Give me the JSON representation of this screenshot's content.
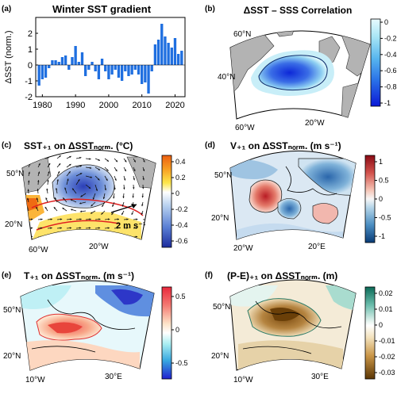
{
  "panels": {
    "a": {
      "tag": "(a)",
      "title": "Winter SST gradient",
      "ylabel": "ΔSST (norm.)",
      "yticks": [
        "-2",
        "-1",
        "0",
        "1",
        "2"
      ],
      "xticks": [
        "1980",
        "1990",
        "2000",
        "2010",
        "2020"
      ]
    },
    "b": {
      "tag": "(b)",
      "title": "ΔSST – SSS Correlation",
      "colorbar": [
        "0",
        "-0.2",
        "-0.4",
        "-0.6",
        "-0.8",
        "-1"
      ],
      "lat": [
        "60°N",
        "40°N"
      ],
      "lon": [
        "60°W",
        "20°W"
      ]
    },
    "c": {
      "tag": "(c)",
      "title": "SST₊₁ on ΔSSTₙₒᵣₘ. (°C)",
      "colorbar": [
        "0.4",
        "0.2",
        "0",
        "-0.2",
        "-0.4",
        "-0.6"
      ],
      "lat": [
        "50°N",
        "20°N"
      ],
      "lon": [
        "60°W",
        "20°W"
      ],
      "vector_label": "2 m s⁻¹"
    },
    "d": {
      "tag": "(d)",
      "title": "V₊₁ on ΔSSTₙₒᵣₘ. (m s⁻¹)",
      "colorbar": [
        "1",
        "0.5",
        "0",
        "-0.5",
        "-1"
      ],
      "lat": [
        "50°N",
        "20°N"
      ],
      "lon": [
        "20°W",
        "20°E"
      ]
    },
    "e": {
      "tag": "(e)",
      "title": "T₊₁ on ΔSSTₙₒᵣₘ. (m s⁻¹)",
      "colorbar": [
        "0.5",
        "0",
        "-0.5"
      ],
      "lat": [
        "50°N",
        "20°N"
      ],
      "lon": [
        "10°W",
        "30°E"
      ]
    },
    "f": {
      "tag": "(f)",
      "title": "(P-E)₊₁ on ΔSSTₙₒᵣₘ. (m)",
      "colorbar": [
        "0.02",
        "0.01",
        "0",
        "-0.01",
        "-0.02",
        "-0.03"
      ],
      "lat": [
        "50°N",
        "20°N"
      ],
      "lon": [
        "10°W",
        "30°E"
      ]
    }
  },
  "chart_data": {
    "type": "bar",
    "title": "Winter SST gradient",
    "xlabel": "",
    "ylabel": "ΔSST (norm.)",
    "ylim": [
      -2,
      3
    ],
    "xlim": [
      1978,
      2023
    ],
    "categories": [
      1979,
      1980,
      1981,
      1982,
      1983,
      1984,
      1985,
      1986,
      1987,
      1988,
      1989,
      1990,
      1991,
      1992,
      1993,
      1994,
      1995,
      1996,
      1997,
      1998,
      1999,
      2000,
      2001,
      2002,
      2003,
      2004,
      2005,
      2006,
      2007,
      2008,
      2009,
      2010,
      2011,
      2012,
      2013,
      2014,
      2015,
      2016,
      2017,
      2018,
      2019,
      2020,
      2021,
      2022
    ],
    "values": [
      -1.3,
      -0.9,
      -0.8,
      -0.2,
      0.3,
      0.3,
      0.2,
      0.5,
      0.6,
      -0.3,
      0.5,
      1.2,
      0.2,
      0.8,
      -0.7,
      -0.3,
      0.2,
      -0.4,
      -0.9,
      0.4,
      -0.4,
      -0.9,
      -0.6,
      -0.3,
      -0.8,
      -1.0,
      -0.4,
      -0.7,
      -0.6,
      -0.3,
      -0.6,
      -1.2,
      -1.1,
      -1.8,
      -0.4,
      1.3,
      1.6,
      2.6,
      1.8,
      1.4,
      1.1,
      1.7,
      0.7,
      0.9
    ],
    "bar_color": "#1f6fe0"
  }
}
